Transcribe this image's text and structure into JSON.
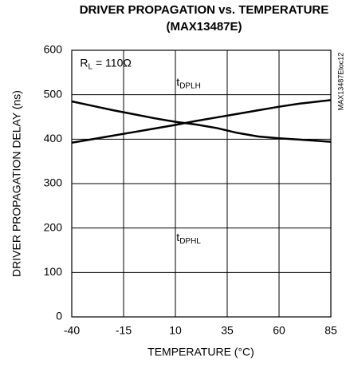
{
  "chart_data": {
    "type": "line",
    "title": [
      "DRIVER PROPAGATION vs. TEMPERATURE",
      "(MAX13487E)"
    ],
    "xlabel": "TEMPERATURE (°C)",
    "ylabel": "DRIVER PROPAGATION DELAY (ns)",
    "side_note": "MAX13487Etoc12",
    "annotations": [
      {
        "text": "R",
        "sub": "L",
        "rest": " = 110Ω"
      },
      {
        "text": "t",
        "sub": "DPLH"
      },
      {
        "text": "t",
        "sub": "DPHL"
      }
    ],
    "x": [
      -40,
      -30,
      -20,
      -10,
      0,
      10,
      20,
      30,
      40,
      50,
      60,
      70,
      85
    ],
    "series": [
      {
        "color": "#000000",
        "values": [
          392,
          400,
          408,
          416,
          424,
          432,
          441,
          449,
          457,
          465,
          473,
          480,
          488
        ]
      },
      {
        "color": "#000000",
        "values": [
          485,
          475,
          465,
          456,
          447,
          439,
          433,
          425,
          414,
          406,
          402,
          399,
          394
        ]
      }
    ],
    "xlim": [
      -40,
      85
    ],
    "xticks": [
      -40,
      -15,
      10,
      35,
      60,
      85
    ],
    "ylim": [
      0,
      600
    ],
    "yticks": [
      0,
      100,
      200,
      300,
      400,
      500,
      600
    ],
    "grid": true
  }
}
